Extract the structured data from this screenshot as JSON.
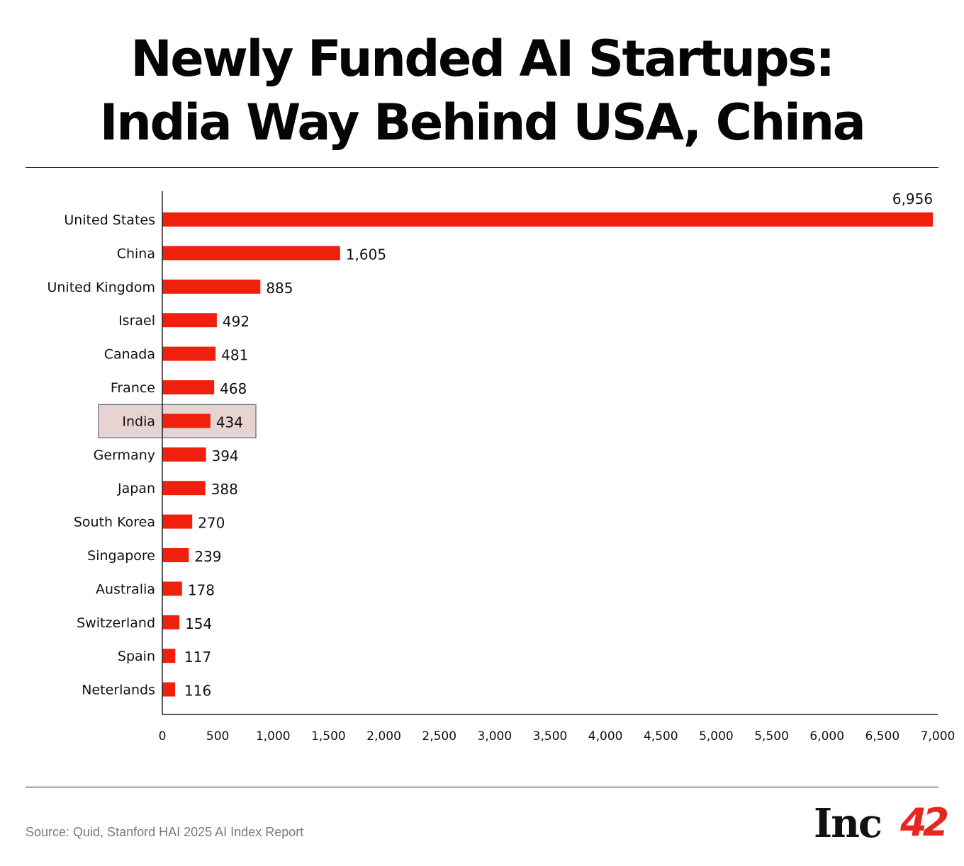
{
  "header": {
    "title_line1": "Newly Funded AI Startups:",
    "title_line2": "India Way Behind USA, China"
  },
  "chart_data": {
    "type": "bar",
    "orientation": "horizontal",
    "categories": [
      "United States",
      "China",
      "United Kingdom",
      "Israel",
      "Canada",
      "France",
      "India",
      "Germany",
      "Japan",
      "South Korea",
      "Singapore",
      "Australia",
      "Switzerland",
      "Spain",
      "Neterlands"
    ],
    "values": [
      6956,
      1605,
      885,
      492,
      481,
      468,
      434,
      394,
      388,
      270,
      239,
      178,
      154,
      117,
      116
    ],
    "value_labels": [
      "6,956",
      "1,605",
      "885",
      "492",
      "481",
      "468",
      "434",
      "394",
      "388",
      "270",
      "239",
      "178",
      "154",
      "117",
      "116"
    ],
    "xlim": [
      0,
      7000
    ],
    "x_ticks": [
      0,
      500,
      1000,
      1500,
      2000,
      2500,
      3000,
      3500,
      4000,
      4500,
      5000,
      5500,
      6000,
      6500,
      7000
    ],
    "x_tick_labels": [
      "0",
      "500",
      "1,000",
      "1,500",
      "2,000",
      "2,500",
      "3,000",
      "3,500",
      "4,000",
      "4,500",
      "5,000",
      "5,500",
      "6,000",
      "6,500",
      "7,000"
    ],
    "highlight": "India",
    "xlabel": "",
    "ylabel": "",
    "grid": false
  },
  "colors": {
    "bar": "#f0200f",
    "highlight_fill": "#e8d3d3",
    "highlight_stroke": "#5f6780",
    "axis": "#222222",
    "source_text": "#7a7a7a",
    "logo_accent": "#e8271f"
  },
  "footer": {
    "source": "Source: Quid, Stanford HAI 2025 AI Index Report",
    "logo_text": "Inc",
    "logo_number": "42"
  }
}
